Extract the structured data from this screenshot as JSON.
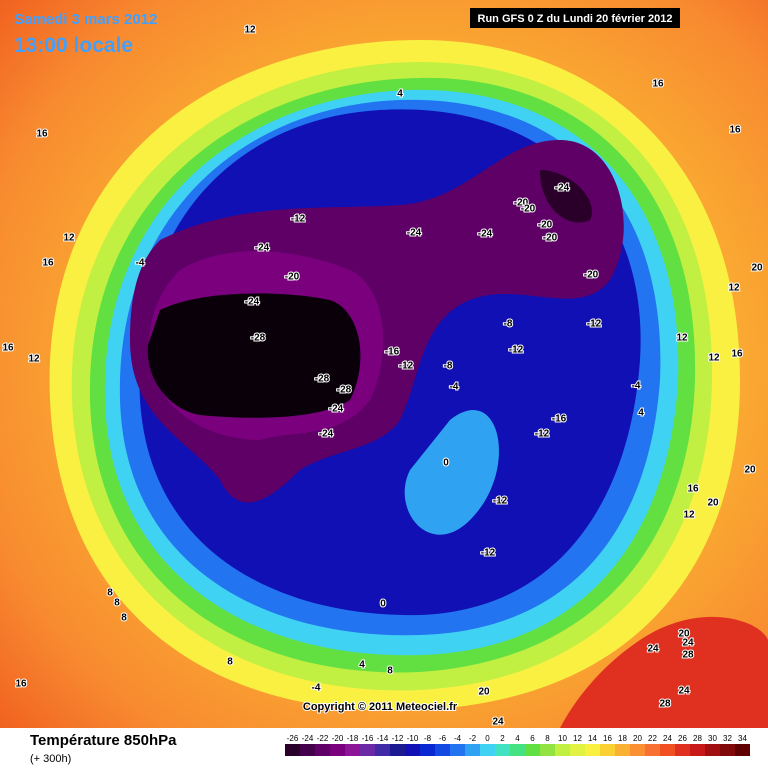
{
  "header": {
    "date": "Samedi 3 mars 2012",
    "time": "13:00 locale",
    "run": "Run GFS 0 Z du Lundi 20 février 2012"
  },
  "footer": {
    "title": "Température 850hPa",
    "lead": "(+ 300h)",
    "copyright": "Copyright © 2011 Meteociel.fr"
  },
  "labels": [
    12,
    16,
    16,
    16,
    12,
    16,
    4,
    -4,
    -12,
    -24,
    -20,
    -24,
    -28,
    -28,
    -28,
    -24,
    -24,
    -24,
    -24,
    -24,
    -20,
    -20,
    -20,
    -20,
    -20,
    -12,
    -8,
    -12,
    -16,
    -12,
    -8,
    -4,
    -16,
    -12,
    -4,
    4,
    0,
    -12,
    -12,
    0,
    8,
    8,
    8,
    8,
    4,
    8,
    -4,
    16,
    12,
    16,
    12,
    12,
    20,
    20,
    16,
    20,
    12,
    20,
    24,
    28,
    24,
    24,
    28,
    20,
    24,
    16,
    12
  ],
  "colorbar": {
    "ticks": [
      -26,
      -24,
      -22,
      -20,
      -18,
      -16,
      -14,
      -12,
      -10,
      -8,
      -6,
      -4,
      -2,
      0,
      2,
      4,
      6,
      8,
      10,
      12,
      14,
      16,
      18,
      20,
      22,
      24,
      26,
      28,
      30,
      32,
      34
    ],
    "colors": [
      "#2a002a",
      "#44004a",
      "#5e0066",
      "#7a007e",
      "#8c1496",
      "#6a2aa6",
      "#402aa6",
      "#1c1a90",
      "#1010b4",
      "#0a28d2",
      "#1448e2",
      "#2274f0",
      "#30a2f2",
      "#40d2f2",
      "#40e2c2",
      "#44e282",
      "#62e042",
      "#92e242",
      "#c2f042",
      "#e2f242",
      "#faf042",
      "#fad032",
      "#fab032",
      "#fa9032",
      "#f87032",
      "#f05022",
      "#e03020",
      "#c81818",
      "#a01010",
      "#800808",
      "#600000"
    ]
  }
}
